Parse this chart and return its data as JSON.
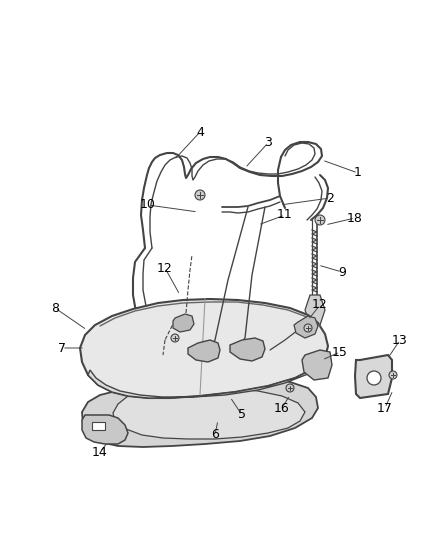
{
  "bg_color": "#ffffff",
  "line_color": "#444444",
  "label_color": "#000000",
  "label_fontsize": 9,
  "fig_width": 4.38,
  "fig_height": 5.33,
  "dpi": 100
}
